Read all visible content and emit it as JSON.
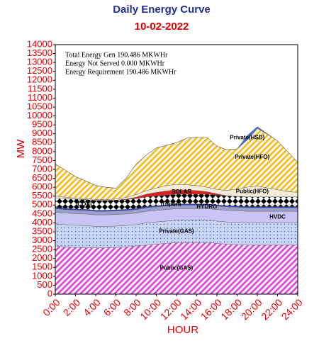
{
  "chart_data": {
    "type": "stacked-area",
    "title": "Daily Energy Curve",
    "subtitle": "10-02-2022",
    "y_label": "MW",
    "x_label": "HOUR",
    "annotations": [
      "Total Energy Gen 190.486 MKWHr",
      "Energy Not Served  0.000 MKWHr",
      "Energy Requirement     190.486 MKWHr"
    ],
    "x": [
      0,
      1,
      2,
      3,
      4,
      5,
      6,
      7,
      8,
      9,
      10,
      11,
      12,
      13,
      14,
      15,
      16,
      17,
      18,
      19,
      20,
      21,
      22,
      23,
      24
    ],
    "xlim": [
      0,
      24
    ],
    "xticks": [
      {
        "value": 0,
        "label": "0:00"
      },
      {
        "value": 2,
        "label": "2:00"
      },
      {
        "value": 4,
        "label": "4:00"
      },
      {
        "value": 6,
        "label": "6:00"
      },
      {
        "value": 8,
        "label": "8:00"
      },
      {
        "value": 10,
        "label": "10:00"
      },
      {
        "value": 12,
        "label": "12:00"
      },
      {
        "value": 14,
        "label": "14:00"
      },
      {
        "value": 16,
        "label": "16:00"
      },
      {
        "value": 18,
        "label": "18:00"
      },
      {
        "value": 20,
        "label": "20:00"
      },
      {
        "value": 22,
        "label": "22:00"
      },
      {
        "value": 24,
        "label": "24:00"
      }
    ],
    "ylim": [
      0,
      14000
    ],
    "yticks": [
      0,
      500,
      1000,
      1500,
      2000,
      2500,
      3000,
      3500,
      4000,
      4500,
      5000,
      5500,
      6000,
      6500,
      7000,
      7500,
      8000,
      8500,
      9000,
      9500,
      10000,
      10500,
      11000,
      11500,
      12000,
      12500,
      13000,
      13500,
      14000
    ],
    "grid": false,
    "series": [
      {
        "name": "Public(GAS)",
        "color": "#e040e0",
        "pattern": "hatch",
        "values": [
          2700,
          2650,
          2620,
          2600,
          2600,
          2600,
          2620,
          2650,
          2700,
          2750,
          2800,
          2850,
          2900,
          2900,
          2900,
          2900,
          2850,
          2800,
          2780,
          2750,
          2750,
          2750,
          2750,
          2750,
          2750
        ]
      },
      {
        "name": "Private(GAS)",
        "color": "#c8d4f4",
        "pattern": "dots",
        "values": [
          1250,
          1250,
          1250,
          1250,
          1200,
          1200,
          1200,
          1200,
          1200,
          1250,
          1250,
          1250,
          1250,
          1250,
          1250,
          1250,
          1250,
          1250,
          1250,
          1250,
          1250,
          1250,
          1250,
          1250,
          1250
        ]
      },
      {
        "name": "HVDC",
        "color": "#c8c4f4",
        "pattern": "solid",
        "values": [
          650,
          650,
          650,
          650,
          650,
          650,
          650,
          650,
          650,
          650,
          650,
          650,
          650,
          650,
          650,
          650,
          650,
          650,
          650,
          650,
          650,
          650,
          650,
          650,
          650
        ]
      },
      {
        "name": "HYDRO",
        "color": "#9aa0c8",
        "pattern": "solid",
        "values": [
          200,
          200,
          200,
          200,
          200,
          200,
          200,
          200,
          200,
          200,
          200,
          200,
          200,
          200,
          200,
          200,
          200,
          200,
          200,
          200,
          200,
          200,
          200,
          200,
          200
        ]
      },
      {
        "name": "Tripura",
        "color": "#2a3cd8",
        "pattern": "solid",
        "values": [
          60,
          60,
          60,
          60,
          60,
          60,
          60,
          60,
          60,
          60,
          60,
          60,
          60,
          60,
          60,
          60,
          60,
          60,
          60,
          60,
          60,
          60,
          60,
          60,
          60
        ]
      },
      {
        "name": "COAL",
        "color": "#000000",
        "pattern": "diamond",
        "values": [
          550,
          550,
          550,
          550,
          550,
          550,
          550,
          550,
          550,
          550,
          550,
          550,
          550,
          550,
          550,
          550,
          550,
          550,
          550,
          550,
          550,
          550,
          550,
          550,
          550
        ]
      },
      {
        "name": "SOLAR",
        "color": "#e02020",
        "pattern": "solid",
        "values": [
          0,
          0,
          0,
          0,
          0,
          0,
          0,
          20,
          80,
          150,
          200,
          230,
          250,
          230,
          200,
          140,
          70,
          10,
          0,
          0,
          0,
          0,
          0,
          0,
          0
        ]
      },
      {
        "name": "Public(HFO)",
        "color": "#f4ecd8",
        "pattern": "solid",
        "values": [
          100,
          80,
          60,
          50,
          50,
          50,
          60,
          100,
          150,
          200,
          250,
          300,
          300,
          300,
          280,
          250,
          250,
          300,
          400,
          550,
          600,
          500,
          400,
          300,
          250
        ]
      },
      {
        "name": "Private(HFO)",
        "color": "#f0c020",
        "pattern": "hatch",
        "values": [
          1790,
          1510,
          1210,
          990,
          790,
          690,
          610,
          1070,
          1710,
          1990,
          2240,
          2260,
          2340,
          2610,
          2710,
          2800,
          2420,
          2280,
          2260,
          2640,
          3240,
          3010,
          2740,
          2240,
          1690
        ]
      },
      {
        "name": "Private(HSD)",
        "color": "#4070d0",
        "pattern": "solid",
        "values": [
          0,
          0,
          0,
          0,
          0,
          0,
          0,
          0,
          0,
          0,
          0,
          0,
          0,
          0,
          0,
          0,
          0,
          0,
          0,
          250,
          100,
          30,
          0,
          0,
          0
        ]
      }
    ]
  }
}
